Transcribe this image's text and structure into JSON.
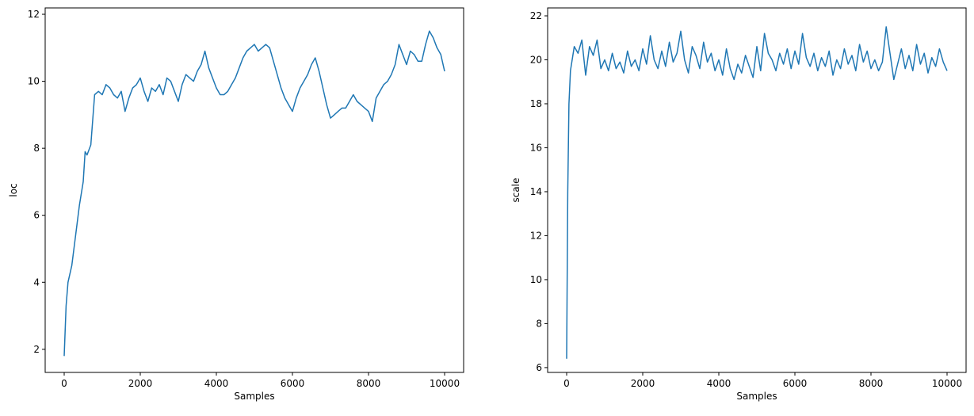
{
  "chart_data": [
    {
      "type": "line",
      "xlabel": "Samples",
      "ylabel": "loc",
      "xlim": [
        -500,
        10500
      ],
      "ylim": [
        1.31,
        12.19
      ],
      "xticks": [
        0,
        2000,
        4000,
        6000,
        8000,
        10000
      ],
      "yticks": [
        2,
        4,
        6,
        8,
        10,
        12
      ],
      "series": [
        {
          "color": "#1f77b4",
          "x": [
            0,
            50,
            100,
            200,
            300,
            400,
            500,
            550,
            600,
            700,
            800,
            900,
            1000,
            1100,
            1200,
            1300,
            1400,
            1500,
            1600,
            1700,
            1800,
            1900,
            2000,
            2100,
            2200,
            2300,
            2400,
            2500,
            2600,
            2700,
            2800,
            2900,
            3000,
            3100,
            3200,
            3300,
            3400,
            3500,
            3600,
            3700,
            3800,
            3900,
            4000,
            4100,
            4200,
            4300,
            4400,
            4500,
            4600,
            4700,
            4800,
            4900,
            5000,
            5100,
            5200,
            5300,
            5400,
            5500,
            5600,
            5700,
            5800,
            5900,
            6000,
            6100,
            6200,
            6300,
            6400,
            6500,
            6600,
            6700,
            6800,
            6900,
            7000,
            7100,
            7200,
            7300,
            7400,
            7500,
            7600,
            7700,
            7800,
            7900,
            8000,
            8100,
            8200,
            8300,
            8400,
            8500,
            8600,
            8700,
            8800,
            8900,
            9000,
            9100,
            9200,
            9300,
            9400,
            9500,
            9600,
            9700,
            9800,
            9900,
            10000
          ],
          "values": [
            1.8,
            3.3,
            4.0,
            4.5,
            5.4,
            6.3,
            7.0,
            7.9,
            7.8,
            8.1,
            9.6,
            9.7,
            9.6,
            9.9,
            9.8,
            9.6,
            9.5,
            9.7,
            9.1,
            9.5,
            9.8,
            9.9,
            10.1,
            9.7,
            9.4,
            9.8,
            9.7,
            9.9,
            9.6,
            10.1,
            10.0,
            9.7,
            9.4,
            9.9,
            10.2,
            10.1,
            10.0,
            10.3,
            10.5,
            10.9,
            10.4,
            10.1,
            9.8,
            9.6,
            9.6,
            9.7,
            9.9,
            10.1,
            10.4,
            10.7,
            10.9,
            11.0,
            11.1,
            10.9,
            11.0,
            11.1,
            11.0,
            10.6,
            10.2,
            9.8,
            9.5,
            9.3,
            9.1,
            9.5,
            9.8,
            10.0,
            10.2,
            10.5,
            10.7,
            10.3,
            9.8,
            9.3,
            8.9,
            9.0,
            9.1,
            9.2,
            9.2,
            9.4,
            9.6,
            9.4,
            9.3,
            9.2,
            9.1,
            8.8,
            9.5,
            9.7,
            9.9,
            10.0,
            10.2,
            10.5,
            11.1,
            10.8,
            10.5,
            10.9,
            10.8,
            10.6,
            10.6,
            11.1,
            11.5,
            11.3,
            11.0,
            10.8,
            10.3
          ]
        }
      ]
    },
    {
      "type": "line",
      "xlabel": "Samples",
      "ylabel": "scale",
      "xlim": [
        -500,
        10500
      ],
      "ylim": [
        5.78,
        22.36
      ],
      "xticks": [
        0,
        2000,
        4000,
        6000,
        8000,
        10000
      ],
      "yticks": [
        6,
        8,
        10,
        12,
        14,
        16,
        18,
        20,
        22
      ],
      "series": [
        {
          "color": "#1f77b4",
          "x": [
            0,
            30,
            60,
            100,
            200,
            300,
            400,
            500,
            600,
            700,
            800,
            900,
            1000,
            1100,
            1200,
            1300,
            1400,
            1500,
            1600,
            1700,
            1800,
            1900,
            2000,
            2100,
            2200,
            2300,
            2400,
            2500,
            2600,
            2700,
            2800,
            2900,
            3000,
            3100,
            3200,
            3300,
            3400,
            3500,
            3600,
            3700,
            3800,
            3900,
            4000,
            4100,
            4200,
            4300,
            4400,
            4500,
            4600,
            4700,
            4800,
            4900,
            5000,
            5100,
            5200,
            5300,
            5400,
            5500,
            5600,
            5700,
            5800,
            5900,
            6000,
            6100,
            6200,
            6300,
            6400,
            6500,
            6600,
            6700,
            6800,
            6900,
            7000,
            7100,
            7200,
            7300,
            7400,
            7500,
            7600,
            7700,
            7800,
            7900,
            8000,
            8100,
            8200,
            8300,
            8400,
            8500,
            8600,
            8700,
            8800,
            8900,
            9000,
            9100,
            9200,
            9300,
            9400,
            9500,
            9600,
            9700,
            9800,
            9900,
            10000
          ],
          "values": [
            6.4,
            14.0,
            18.0,
            19.5,
            20.6,
            20.3,
            20.9,
            19.3,
            20.6,
            20.2,
            20.9,
            19.6,
            20.0,
            19.5,
            20.3,
            19.6,
            19.9,
            19.4,
            20.4,
            19.7,
            20.0,
            19.5,
            20.5,
            19.8,
            21.1,
            20.0,
            19.6,
            20.4,
            19.7,
            20.8,
            19.9,
            20.3,
            21.3,
            20.0,
            19.4,
            20.6,
            20.2,
            19.6,
            20.8,
            19.9,
            20.3,
            19.5,
            20.0,
            19.3,
            20.5,
            19.6,
            19.1,
            19.8,
            19.4,
            20.2,
            19.7,
            19.2,
            20.6,
            19.5,
            21.2,
            20.3,
            20.0,
            19.5,
            20.3,
            19.8,
            20.5,
            19.6,
            20.4,
            19.8,
            21.2,
            20.1,
            19.7,
            20.3,
            19.5,
            20.1,
            19.7,
            20.4,
            19.3,
            20.0,
            19.6,
            20.5,
            19.8,
            20.2,
            19.5,
            20.7,
            19.9,
            20.4,
            19.6,
            20.0,
            19.5,
            19.9,
            21.5,
            20.3,
            19.1,
            19.8,
            20.5,
            19.6,
            20.2,
            19.5,
            20.7,
            19.8,
            20.3,
            19.4,
            20.1,
            19.7,
            20.5,
            19.9,
            19.5
          ]
        }
      ]
    }
  ]
}
